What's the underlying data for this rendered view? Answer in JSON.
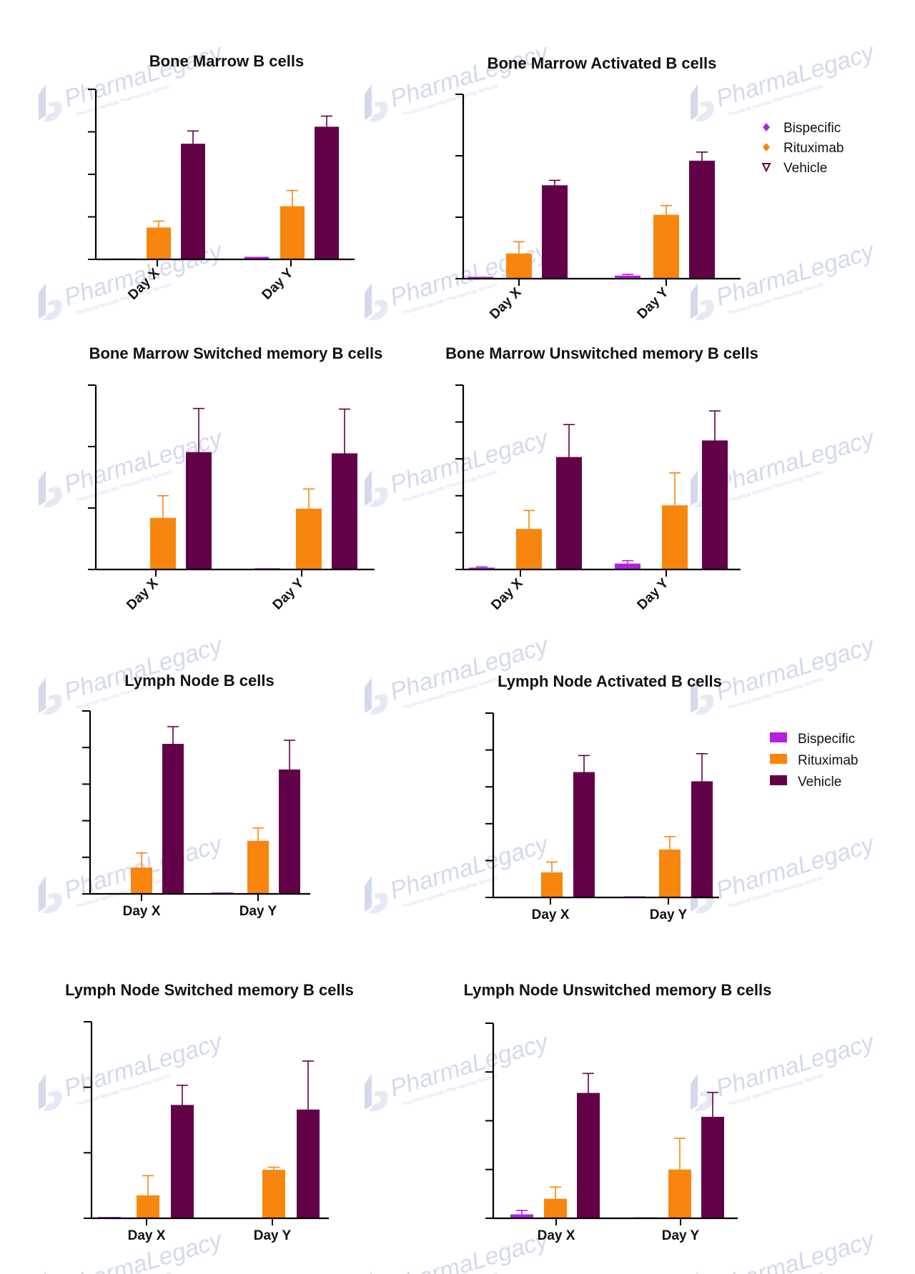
{
  "colors": {
    "bispecific": "#b51fe0",
    "rituximab": "#f8860e",
    "vehicle": "#620048",
    "axis": "#000000",
    "watermark": "#9aa6d6"
  },
  "watermark": {
    "brand": "PharmaLegacy",
    "tagline": "Preclinical Specialty Pharmacology Services"
  },
  "legends": [
    {
      "style": "marker",
      "entries": [
        {
          "label": "Bispecific",
          "marker": "diamond",
          "color": "#b51fe0"
        },
        {
          "label": "Rituximab",
          "marker": "diamond",
          "color": "#f8860e"
        },
        {
          "label": "Vehicle",
          "marker": "triangle-down-open",
          "color": "#620048"
        }
      ]
    },
    {
      "style": "box",
      "entries": [
        {
          "label": "Bispecific",
          "color": "#b51fe0"
        },
        {
          "label": "Rituximab",
          "color": "#f8860e"
        },
        {
          "label": "Vehicle",
          "color": "#620048"
        }
      ]
    }
  ],
  "chart_data": [
    {
      "type": "bar",
      "title": "Bone Marrow B cells",
      "categories": [
        "Day X",
        "Day Y"
      ],
      "ylim": [
        0,
        4
      ],
      "yticks": 5,
      "rotated_ticks": true,
      "series": [
        {
          "name": "Bispecific",
          "values": [
            0.02,
            0.06
          ],
          "errors": [
            0,
            0
          ]
        },
        {
          "name": "Rituximab",
          "values": [
            0.75,
            1.25
          ],
          "errors": [
            0.15,
            0.37
          ]
        },
        {
          "name": "Vehicle",
          "values": [
            2.72,
            3.12
          ],
          "errors": [
            0.3,
            0.25
          ]
        }
      ]
    },
    {
      "type": "bar",
      "title": "Bone Marrow Activated B cells",
      "categories": [
        "Day X",
        "Day Y"
      ],
      "ylim": [
        0,
        3
      ],
      "yticks": 4,
      "rotated_ticks": true,
      "series": [
        {
          "name": "Bispecific",
          "values": [
            0.03,
            0.05
          ],
          "errors": [
            0,
            0.02
          ]
        },
        {
          "name": "Rituximab",
          "values": [
            0.41,
            1.04
          ],
          "errors": [
            0.19,
            0.15
          ]
        },
        {
          "name": "Vehicle",
          "values": [
            1.52,
            1.92
          ],
          "errors": [
            0.08,
            0.14
          ]
        }
      ]
    },
    {
      "type": "bar",
      "title": "Bone Marrow Switched memory B cells",
      "categories": [
        "Day X",
        "Day Y"
      ],
      "ylim": [
        0,
        3
      ],
      "yticks": 4,
      "rotated_ticks": true,
      "series": [
        {
          "name": "Bispecific",
          "values": [
            0.01,
            0.02
          ],
          "errors": [
            0,
            0
          ]
        },
        {
          "name": "Rituximab",
          "values": [
            0.84,
            0.99
          ],
          "errors": [
            0.36,
            0.32
          ]
        },
        {
          "name": "Vehicle",
          "values": [
            1.91,
            1.89
          ],
          "errors": [
            0.71,
            0.72
          ]
        }
      ]
    },
    {
      "type": "bar",
      "title": "Bone Marrow Unswitched memory B cells",
      "categories": [
        "Day X",
        "Day Y"
      ],
      "ylim": [
        0,
        5
      ],
      "yticks": 6,
      "rotated_ticks": true,
      "series": [
        {
          "name": "Bispecific",
          "values": [
            0.05,
            0.16
          ],
          "errors": [
            0.02,
            0.08
          ]
        },
        {
          "name": "Rituximab",
          "values": [
            1.1,
            1.74
          ],
          "errors": [
            0.5,
            0.88
          ]
        },
        {
          "name": "Vehicle",
          "values": [
            3.05,
            3.5
          ],
          "errors": [
            0.88,
            0.8
          ]
        }
      ]
    },
    {
      "type": "bar",
      "title": "Lymph Node B cells",
      "categories": [
        "Day X",
        "Day Y"
      ],
      "ylim": [
        0,
        5
      ],
      "yticks": 6,
      "rotated_ticks": false,
      "series": [
        {
          "name": "Bispecific",
          "values": [
            0.02,
            0.04
          ],
          "errors": [
            0,
            0
          ]
        },
        {
          "name": "Rituximab",
          "values": [
            0.72,
            1.45
          ],
          "errors": [
            0.4,
            0.35
          ]
        },
        {
          "name": "Vehicle",
          "values": [
            4.1,
            3.4
          ],
          "errors": [
            0.47,
            0.8
          ]
        }
      ]
    },
    {
      "type": "bar",
      "title": "Lymph Node Activated B cells",
      "categories": [
        "Day X",
        "Day Y"
      ],
      "ylim": [
        0,
        5
      ],
      "yticks": 6,
      "rotated_ticks": false,
      "series": [
        {
          "name": "Bispecific",
          "values": [
            0.02,
            0.03
          ],
          "errors": [
            0,
            0
          ]
        },
        {
          "name": "Rituximab",
          "values": [
            0.68,
            1.3
          ],
          "errors": [
            0.28,
            0.35
          ]
        },
        {
          "name": "Vehicle",
          "values": [
            3.4,
            3.15
          ],
          "errors": [
            0.45,
            0.75
          ]
        }
      ]
    },
    {
      "type": "bar",
      "title": "Lymph Node Switched memory B cells",
      "categories": [
        "Day X",
        "Day Y"
      ],
      "ylim": [
        0,
        3
      ],
      "yticks": 4,
      "rotated_ticks": false,
      "series": [
        {
          "name": "Bispecific",
          "values": [
            0.02,
            0.01
          ],
          "errors": [
            0,
            0
          ]
        },
        {
          "name": "Rituximab",
          "values": [
            0.35,
            0.74
          ],
          "errors": [
            0.3,
            0.04
          ]
        },
        {
          "name": "Vehicle",
          "values": [
            1.73,
            1.66
          ],
          "errors": [
            0.3,
            0.74
          ]
        }
      ]
    },
    {
      "type": "bar",
      "title": "Lymph Node Unswitched memory B cells",
      "categories": [
        "Day X",
        "Day Y"
      ],
      "ylim": [
        0,
        4
      ],
      "yticks": 5,
      "rotated_ticks": false,
      "series": [
        {
          "name": "Bispecific",
          "values": [
            0.08,
            0.02
          ],
          "errors": [
            0.08,
            0
          ]
        },
        {
          "name": "Rituximab",
          "values": [
            0.4,
            1.0
          ],
          "errors": [
            0.24,
            0.64
          ]
        },
        {
          "name": "Vehicle",
          "values": [
            2.57,
            2.08
          ],
          "errors": [
            0.4,
            0.5
          ]
        }
      ]
    }
  ]
}
